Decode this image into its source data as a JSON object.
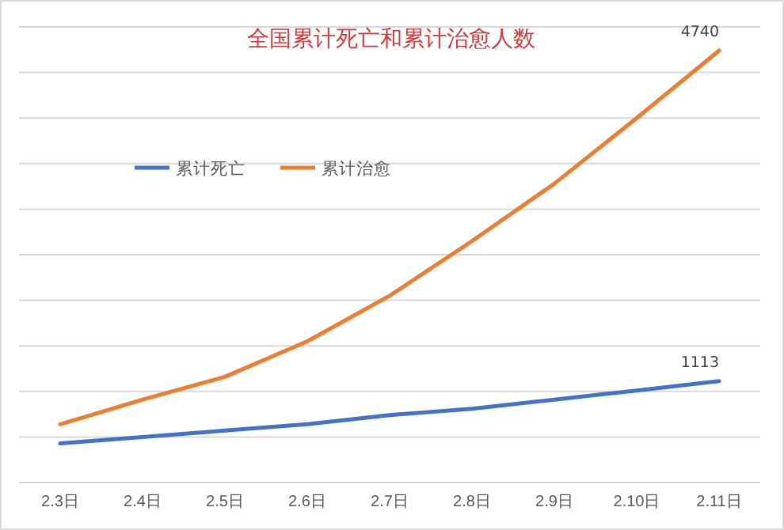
{
  "chart_data": {
    "type": "line",
    "title": "全国累计死亡和累计治愈人数",
    "categories": [
      "2.3日",
      "2.4日",
      "2.5日",
      "2.6日",
      "2.7日",
      "2.8日",
      "2.9日",
      "2.10日",
      "2.11日"
    ],
    "series": [
      {
        "name": "累计死亡",
        "color": "#4472c4",
        "values": [
          430,
          500,
          570,
          640,
          740,
          810,
          910,
          1010,
          1113
        ],
        "value_labels": [
          null,
          null,
          null,
          null,
          null,
          null,
          null,
          null,
          "1113"
        ]
      },
      {
        "name": "累计治愈",
        "color": "#ed7d31",
        "values": [
          640,
          910,
          1160,
          1550,
          2050,
          2650,
          3280,
          4000,
          4740
        ],
        "value_labels": [
          null,
          null,
          null,
          null,
          null,
          null,
          null,
          null,
          "4740"
        ]
      }
    ],
    "ylim": [
      0,
      5000
    ],
    "yticks": [
      {
        "value": 0,
        "label": null
      },
      {
        "value": 500,
        "label": null
      },
      {
        "value": 1000,
        "label": null
      },
      {
        "value": 1500,
        "label": null
      },
      {
        "value": 2000,
        "label": null
      },
      {
        "value": 2500,
        "label": null
      },
      {
        "value": 3000,
        "label": null
      },
      {
        "value": 3500,
        "label": null
      },
      {
        "value": 4000,
        "label": null
      },
      {
        "value": 4500,
        "label": null
      },
      {
        "value": 5000,
        "label": null
      }
    ],
    "tick_labels": "x",
    "grid": "y",
    "legend": "top left",
    "marker": "none",
    "line_style": "solid"
  }
}
